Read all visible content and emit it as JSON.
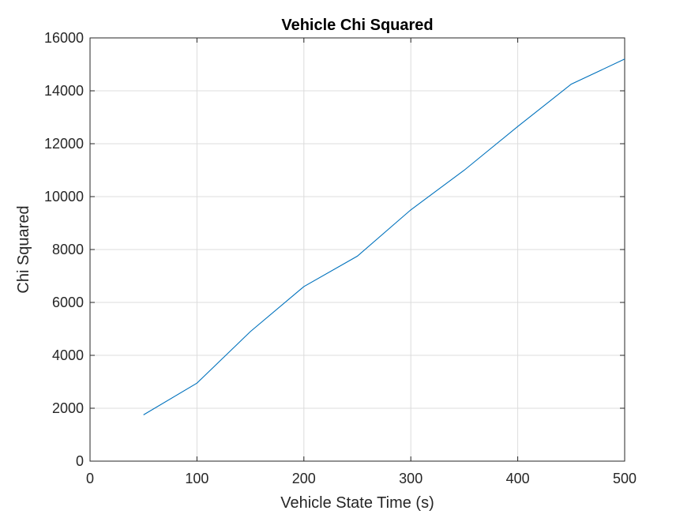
{
  "chart_data": {
    "type": "line",
    "title": "Vehicle Chi Squared",
    "xlabel": "Vehicle State Time (s)",
    "ylabel": "Chi Squared",
    "xlim": [
      0,
      500
    ],
    "ylim": [
      0,
      16000
    ],
    "xticks": [
      0,
      100,
      200,
      300,
      400,
      500
    ],
    "yticks": [
      0,
      2000,
      4000,
      6000,
      8000,
      10000,
      12000,
      14000,
      16000
    ],
    "grid": true,
    "series": [
      {
        "color": "#0072bd",
        "x": [
          50,
          100,
          150,
          200,
          250,
          300,
          350,
          400,
          450,
          500
        ],
        "y": [
          1750,
          2950,
          4900,
          6600,
          7750,
          9500,
          11000,
          12650,
          14250,
          15200
        ]
      }
    ]
  }
}
